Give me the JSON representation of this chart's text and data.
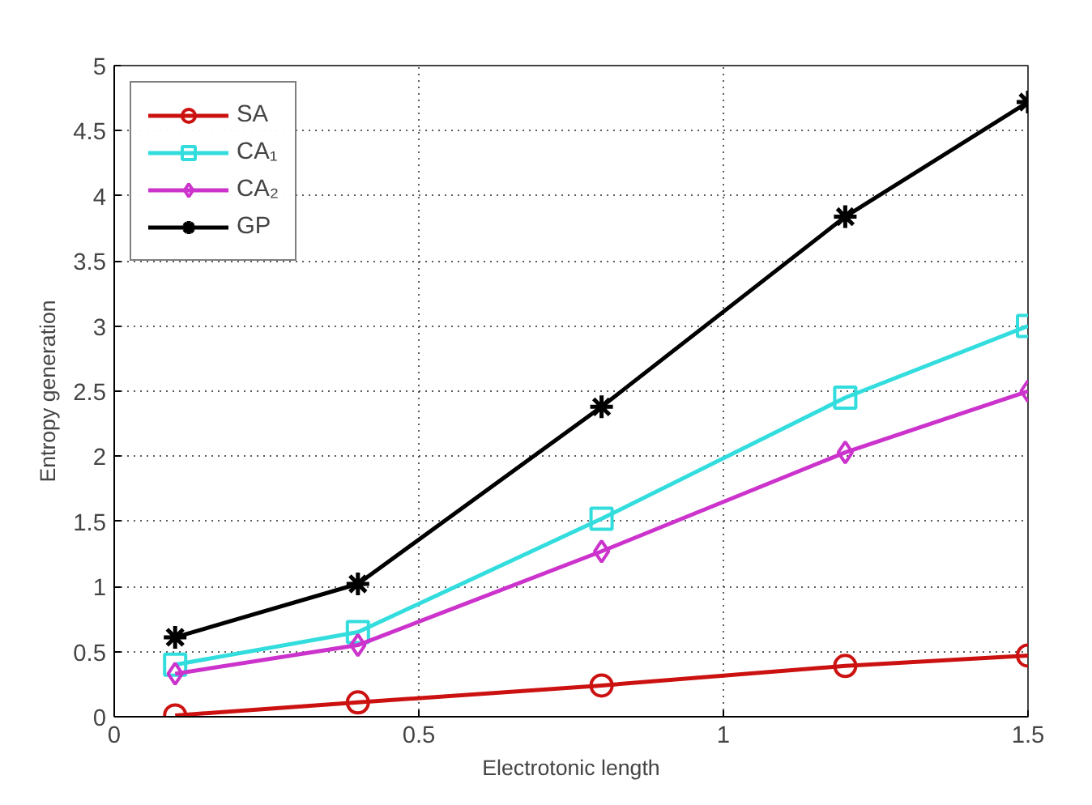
{
  "chart_data": {
    "type": "line",
    "xlabel": "Electrotonic length",
    "ylabel": "Entropy generation",
    "x": [
      0.1,
      0.4,
      0.8,
      1.2,
      1.5
    ],
    "series": [
      {
        "name": "SA",
        "color": "#cc1111",
        "marker": "circle",
        "values": [
          0.01,
          0.11,
          0.24,
          0.39,
          0.47
        ]
      },
      {
        "name": "CA₁",
        "color": "#33dddd",
        "marker": "square",
        "values": [
          0.4,
          0.65,
          1.52,
          2.45,
          3.0
        ]
      },
      {
        "name": "CA₂",
        "color": "#cc33cc",
        "marker": "diamond",
        "values": [
          0.33,
          0.55,
          1.27,
          2.03,
          2.5
        ]
      },
      {
        "name": "GP",
        "color": "#000000",
        "marker": "cross",
        "values": [
          0.61,
          1.02,
          2.38,
          3.84,
          4.72
        ]
      }
    ],
    "xlim": [
      0,
      1.5
    ],
    "xticks": [
      0,
      0.5,
      1,
      1.5
    ],
    "ylim": [
      0,
      5
    ],
    "yticks": [
      0,
      0.5,
      1,
      1.5,
      2,
      2.5,
      3,
      3.5,
      4,
      4.5,
      5
    ],
    "grid": true,
    "legend": "top left",
    "line_style": "solid"
  }
}
